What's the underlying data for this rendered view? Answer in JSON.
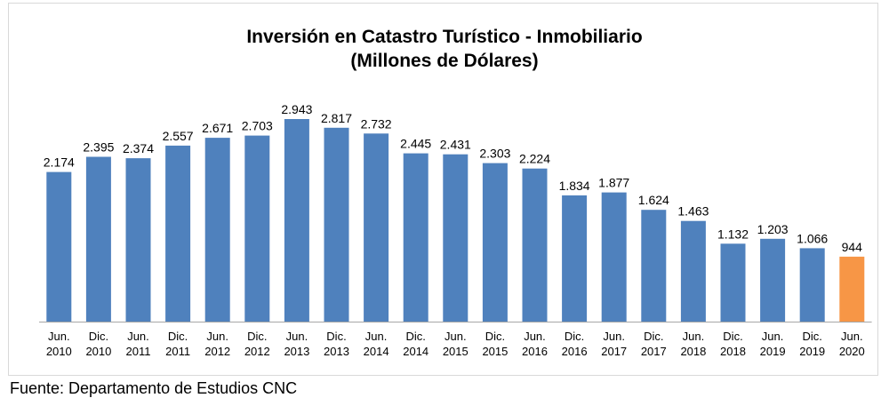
{
  "chart_data": {
    "type": "bar",
    "title": "Inversión  en Catastro Turístico - Inmobiliario",
    "subtitle": "(Millones  de Dólares)",
    "categories": [
      [
        "Jun.",
        "2010"
      ],
      [
        "Dic.",
        "2010"
      ],
      [
        "Jun.",
        "2011"
      ],
      [
        "Dic.",
        "2011"
      ],
      [
        "Jun.",
        "2012"
      ],
      [
        "Dic.",
        "2012"
      ],
      [
        "Jun.",
        "2013"
      ],
      [
        "Dic.",
        "2013"
      ],
      [
        "Jun.",
        "2014"
      ],
      [
        "Dic.",
        "2014"
      ],
      [
        "Jun.",
        "2015"
      ],
      [
        "Dic.",
        "2015"
      ],
      [
        "Jun.",
        "2016"
      ],
      [
        "Dic.",
        "2016"
      ],
      [
        "Jun.",
        "2017"
      ],
      [
        "Dic.",
        "2017"
      ],
      [
        "Jun.",
        "2018"
      ],
      [
        "Dic.",
        "2018"
      ],
      [
        "Jun.",
        "2019"
      ],
      [
        "Dic.",
        "2019"
      ],
      [
        "Jun.",
        "2020"
      ]
    ],
    "values": [
      2174,
      2395,
      2374,
      2557,
      2671,
      2703,
      2943,
      2817,
      2732,
      2445,
      2431,
      2303,
      2224,
      1834,
      1877,
      1624,
      1463,
      1132,
      1203,
      1066,
      944
    ],
    "value_labels": [
      "2.174",
      "2.395",
      "2.374",
      "2.557",
      "2.671",
      "2.703",
      "2.943",
      "2.817",
      "2.732",
      "2.445",
      "2.431",
      "2.303",
      "2.224",
      "1.834",
      "1.877",
      "1.624",
      "1.463",
      "1.132",
      "1.203",
      "1.066",
      "944"
    ],
    "ylim": [
      0,
      3000
    ],
    "grid": false,
    "legend": "none",
    "colors": {
      "default": "#4f81bd",
      "highlight": "#f79646",
      "axis": "#a6a6a6"
    },
    "highlight_index": 20
  },
  "footer": {
    "source": "Fuente: Departamento de Estudios CNC"
  }
}
